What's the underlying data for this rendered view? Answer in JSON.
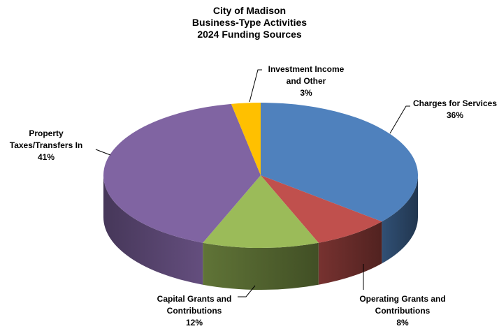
{
  "chart_data": {
    "type": "pie",
    "title_lines": [
      "City of Madison",
      "Business-Type Activities",
      "2024 Funding Sources"
    ],
    "three_d": true,
    "legend": "none",
    "categories": [
      "Charges for Services",
      "Operating Grants and Contributions",
      "Capital Grants and Contributions",
      "Property Taxes/Transfers In",
      "Investment Income and Other"
    ],
    "values": [
      36,
      8,
      12,
      41,
      3
    ],
    "unit": "%",
    "colors": [
      "#4F81BD",
      "#C0504D",
      "#9BBB59",
      "#8064A2",
      "#FFC000"
    ],
    "data_labels": [
      {
        "lines": [
          "Charges for Services",
          "36%"
        ]
      },
      {
        "lines": [
          "Operating Grants and",
          "Contributions",
          "8%"
        ]
      },
      {
        "lines": [
          "Capital Grants and",
          "Contributions",
          "12%"
        ]
      },
      {
        "lines": [
          "Property",
          "Taxes/Transfers In",
          "41%"
        ]
      },
      {
        "lines": [
          "Investment Income",
          "and Other",
          "3%"
        ]
      }
    ]
  }
}
